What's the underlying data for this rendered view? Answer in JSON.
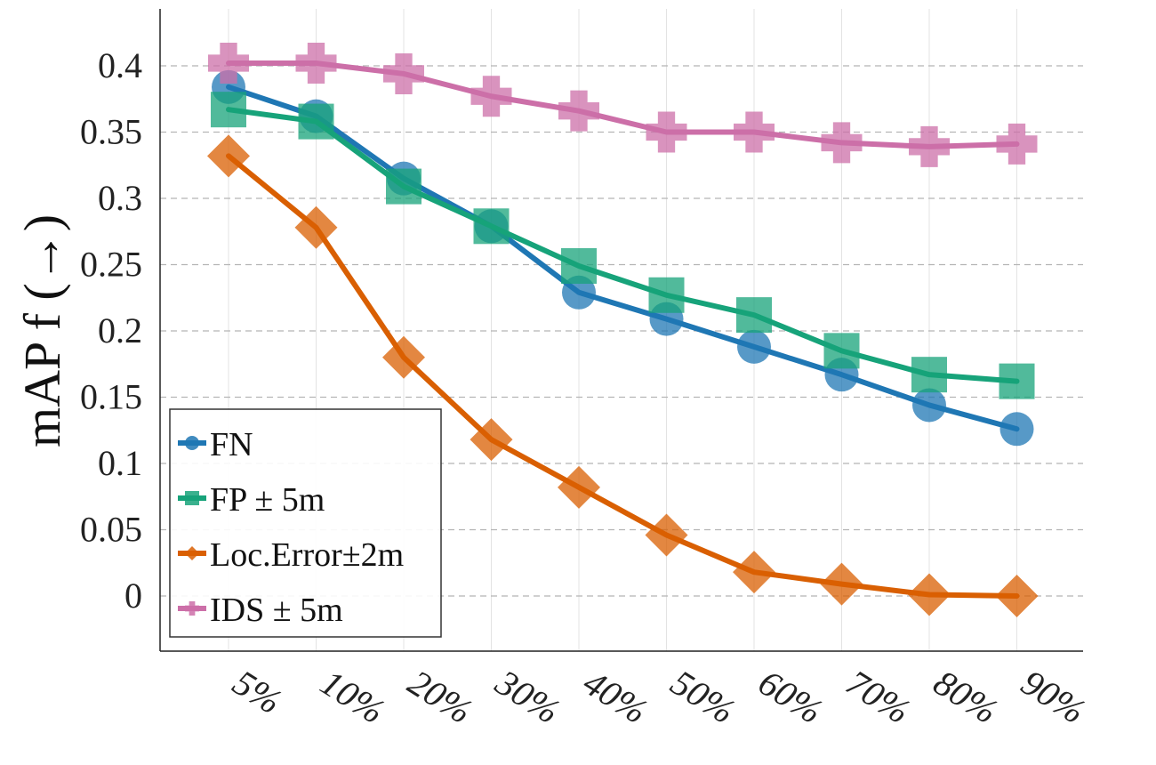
{
  "chart_data": {
    "type": "line",
    "title": "",
    "xlabel": "",
    "ylabel": "mAP f (→)",
    "categories": [
      "5%",
      "10%",
      "20%",
      "30%",
      "40%",
      "50%",
      "60%",
      "70%",
      "80%",
      "90%"
    ],
    "ylim": [
      -0.04,
      0.43
    ],
    "yticks": [
      0,
      0.05,
      0.1,
      0.15,
      0.2,
      0.25,
      0.3,
      0.35,
      0.4
    ],
    "ytick_labels": [
      "0",
      "0.05",
      "0.1",
      "0.15",
      "0.2",
      "0.25",
      "0.3",
      "0.35",
      "0.4"
    ],
    "grid": true,
    "legend_position": "bottom-left",
    "series": [
      {
        "name": "FN",
        "color": "#1f77b4",
        "marker": "circle",
        "values": [
          0.384,
          0.362,
          0.315,
          0.279,
          0.229,
          0.209,
          0.188,
          0.167,
          0.144,
          0.126
        ]
      },
      {
        "name": "FP ± 5m",
        "color": "#17a37a",
        "marker": "square",
        "values": [
          0.367,
          0.358,
          0.309,
          0.279,
          0.249,
          0.227,
          0.212,
          0.185,
          0.167,
          0.162
        ]
      },
      {
        "name": "Loc.Error±2m",
        "color": "#d95f02",
        "marker": "diamond",
        "values": [
          0.332,
          0.278,
          0.18,
          0.118,
          0.082,
          0.046,
          0.018,
          0.009,
          0.001,
          0.0
        ]
      },
      {
        "name": "IDS ± 5m",
        "color": "#cc6fa8",
        "marker": "plus",
        "values": [
          0.402,
          0.402,
          0.394,
          0.377,
          0.366,
          0.35,
          0.35,
          0.342,
          0.339,
          0.341
        ]
      }
    ]
  }
}
